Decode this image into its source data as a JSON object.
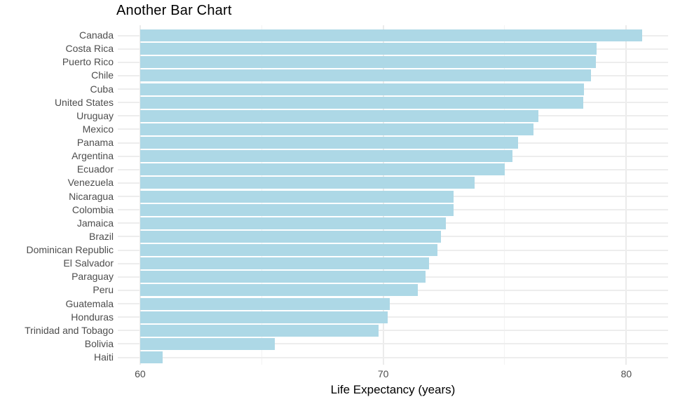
{
  "page": {
    "background": "#FFFFFF"
  },
  "chart_data": {
    "type": "bar",
    "orientation": "horizontal",
    "title": "Another Bar Chart",
    "xlabel": "Life Expectancy (years)",
    "ylabel": "",
    "categories": [
      "Canada",
      "Costa Rica",
      "Puerto Rico",
      "Chile",
      "Cuba",
      "United States",
      "Uruguay",
      "Mexico",
      "Panama",
      "Argentina",
      "Ecuador",
      "Venezuela",
      "Nicaragua",
      "Colombia",
      "Jamaica",
      "Brazil",
      "Dominican Republic",
      "El Salvador",
      "Paraguay",
      "Peru",
      "Guatemala",
      "Honduras",
      "Trinidad and Tobago",
      "Bolivia",
      "Haiti"
    ],
    "values": [
      80.653,
      78.782,
      78.746,
      78.553,
      78.273,
      78.242,
      76.384,
      76.195,
      75.537,
      75.32,
      74.994,
      73.747,
      72.899,
      72.889,
      72.567,
      72.39,
      72.235,
      71.878,
      71.752,
      71.421,
      70.259,
      70.198,
      69.819,
      65.554,
      60.916
    ],
    "bar_base": 60,
    "xlim": [
      59.08,
      81.72
    ],
    "x_major_ticks": [
      60,
      70,
      80
    ],
    "x_minor_ticks": [
      65,
      75
    ],
    "legend": "none",
    "grid": "vertical major+minor, horizontal per-category",
    "colors": {
      "bar": "#ADD8E6",
      "grid_major": "#EBEBEB",
      "grid_minor": "#F3F3F3",
      "axis_text": "#4D4D4D",
      "title_text": "#000000"
    }
  }
}
